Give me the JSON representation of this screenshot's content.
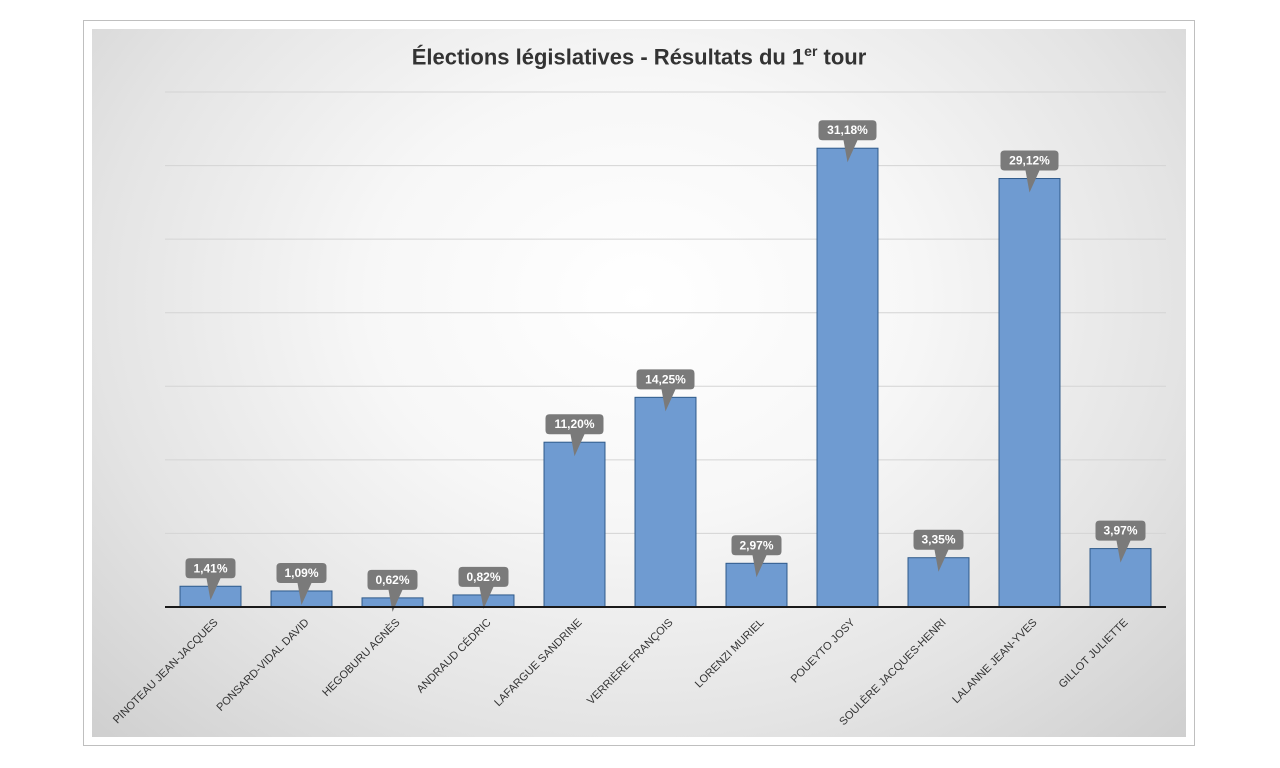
{
  "chart_data": {
    "type": "bar",
    "title": "Élections législatives - Résultats du 1",
    "title_superscript": "er",
    "title_suffix": " tour",
    "xlabel": "",
    "ylabel": "",
    "categories": [
      "PINOTEAU JEAN-JACQUES",
      "PONSARD-VIDAL DAVID",
      "HEGOBURU AGNÈS",
      "ANDRAUD CÉDRIC",
      "LAFARGUE SANDRINE",
      "VERRIÈRE FRANÇOIS",
      "LORENZI MURIEL",
      "POUEYTO JOSY",
      "SOULÈRE JACQUES-HENRI",
      "LALANNE JEAN-YVES",
      "GILLOT JULIETTE"
    ],
    "values": [
      1.41,
      1.09,
      0.62,
      0.82,
      11.2,
      14.25,
      2.97,
      31.18,
      3.35,
      29.12,
      3.97
    ],
    "data_labels": [
      "1,41%",
      "1,09%",
      "0,62%",
      "0,82%",
      "11,20%",
      "14,25%",
      "2,97%",
      "31,18%",
      "3,35%",
      "29,12%",
      "3,97%"
    ],
    "ylim": [
      0,
      35
    ],
    "grid_step": 5,
    "grid": true,
    "legend": "none",
    "colors": {
      "bar_fill": "#6f9bd1",
      "bar_stroke": "#2f5a8a",
      "label_bg": "#7a7a7a",
      "label_text": "#ffffff",
      "grid": "#d4d4d4",
      "axis": "#1a1a1a",
      "tick_text": "#333333"
    }
  }
}
